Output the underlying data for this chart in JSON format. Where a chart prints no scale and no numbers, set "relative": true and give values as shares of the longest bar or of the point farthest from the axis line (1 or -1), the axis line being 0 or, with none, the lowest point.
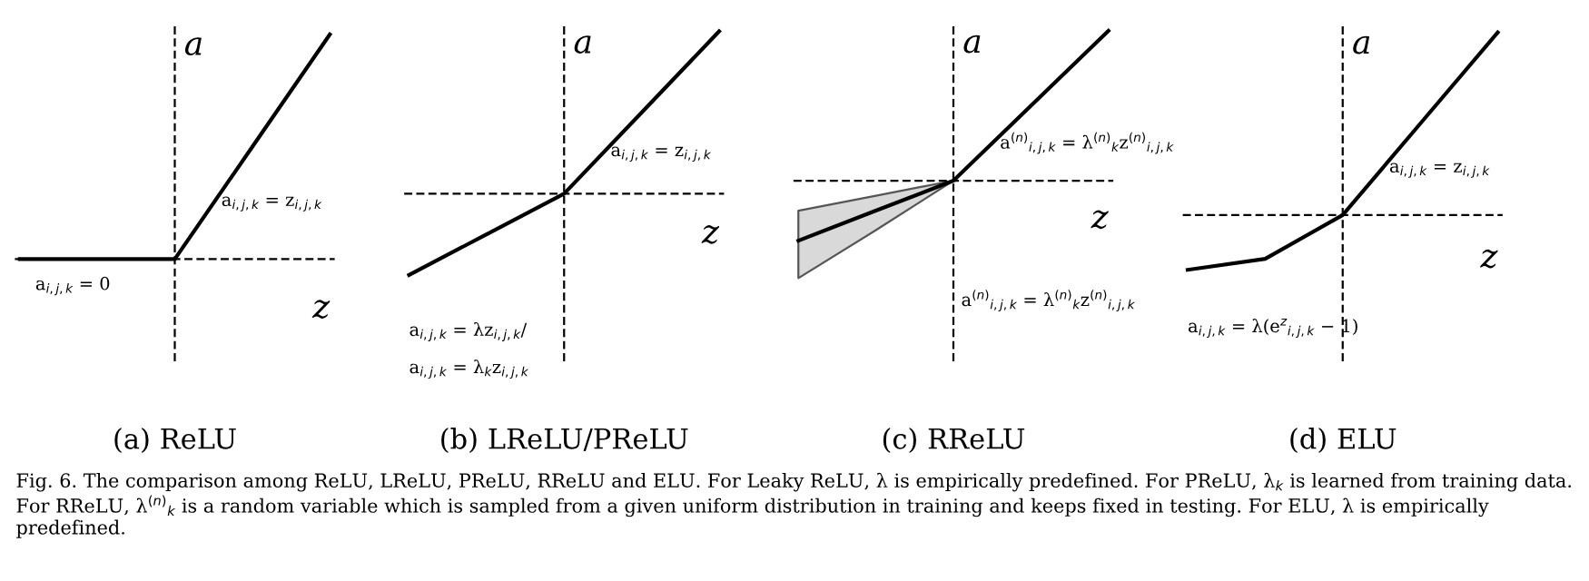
{
  "chart_data": [
    {
      "type": "line",
      "relative": true,
      "title": "(a) ReLU",
      "xlabel": "z",
      "ylabel": "a",
      "tick_labels": false,
      "categories": [
        null,
        null,
        null,
        null,
        null
      ],
      "series": [
        {
          "color": "#000000",
          "values": [
            0,
            0,
            0,
            0.5,
            1
          ]
        }
      ],
      "annotations": [
        "a$_{i,j,k}$ = 0",
        "a$_{i,j,k}$ = z$_{i,j,k}$"
      ]
    },
    {
      "type": "line",
      "relative": true,
      "title": "(b) LReLU/PReLU",
      "xlabel": "z",
      "ylabel": "a",
      "tick_labels": false,
      "categories": [
        null,
        null,
        null,
        null,
        null
      ],
      "series": [
        {
          "color": "#000000",
          "values": [
            -0.5,
            -0.25,
            0,
            0.5,
            1
          ]
        }
      ],
      "annotations": [
        "a$_{i,j,k}$ = z$_{i,j,k}$",
        "a$_{i,j,k}$ = λz$_{i,j,k}$/",
        "a$_{i,j,k}$ = λ$_{k}$z$_{i,j,k}$"
      ]
    },
    {
      "type": "line",
      "relative": true,
      "title": "(c) RReLU",
      "xlabel": "z",
      "ylabel": "a",
      "tick_labels": false,
      "categories": [
        null,
        null,
        null,
        null,
        null
      ],
      "series": [
        {
          "color": "#000000",
          "values": [
            -0.4,
            -0.2,
            0,
            0.5,
            1
          ],
          "lower": [
            -0.65,
            -0.33,
            0,
            0.5,
            1
          ],
          "upper": [
            -0.2,
            -0.1,
            0,
            0.5,
            1
          ]
        }
      ],
      "annotations": [
        "a$^{(n)}$$_{i,j,k}$ = λ$^{(n)}$$_{k}$z$^{(n)}$$_{i,j,k}$",
        "a$^{(n)}$$_{i,j,k}$ = λ$^{(n)}$$_{k}$z$^{(n)}$$_{i,j,k}$"
      ]
    },
    {
      "type": "line",
      "relative": true,
      "title": "(d) ELU",
      "xlabel": "z",
      "ylabel": "a",
      "tick_labels": false,
      "categories": [
        null,
        null,
        null,
        null,
        null
      ],
      "series": [
        {
          "color": "#000000",
          "values": [
            -0.3,
            -0.24,
            0,
            0.5,
            1
          ]
        }
      ],
      "annotations": [
        "a$_{i,j,k}$ = z$_{i,j,k}$",
        "a$_{i,j,k}$ = λ(e$^{z}$$_{i,j,k}$ − 1)",
        "Fig. 6. The comparison among ReLU, LReLU, PReLU, RReLU and ELU. For Leaky ReLU, λ is empirically predefined. For PReLU, λ$_{k}$ is learned from training data. For RReLU, λ$^{(n)}$$_{k}$ is a random variable which is sampled from a given uniform distribution in training and keeps fixed in testing. For ELU, λ is empirically predefined."
      ]
    }
  ]
}
